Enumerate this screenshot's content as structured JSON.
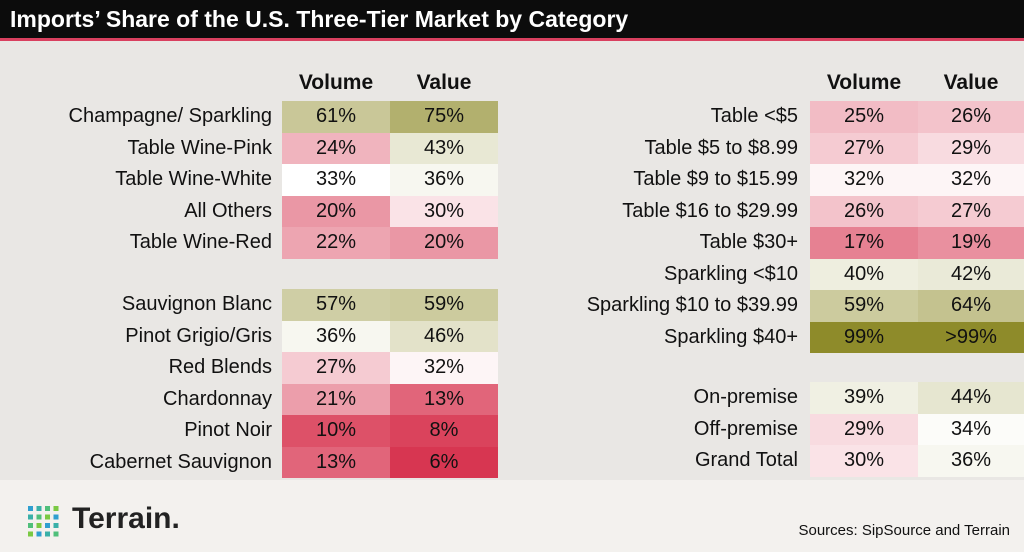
{
  "title": "Imports’ Share of the U.S. Three-Tier Market by Category",
  "colors": {
    "title_bg": "#0c0c0c",
    "title_rule": "#d9405f",
    "background": "#e9e7e4",
    "low_share": "#d62f4b",
    "mid_share": "#ffffff",
    "high_share": "#8d8a27"
  },
  "brand": {
    "logo_icon": "dot-grid-logo",
    "name": "Terrain."
  },
  "source_note": "Sources: SipSource and Terrain",
  "chart_data": [
    {
      "type": "table",
      "columns": [
        "Volume",
        "Value"
      ],
      "groups": [
        {
          "rows": [
            {
              "label": "Champagne/ Sparkling",
              "volume": "61%",
              "value": "75%"
            },
            {
              "label": "Table Wine-Pink",
              "volume": "24%",
              "value": "43%"
            },
            {
              "label": "Table Wine-White",
              "volume": "33%",
              "value": "36%"
            },
            {
              "label": "All Others",
              "volume": "20%",
              "value": "30%"
            },
            {
              "label": "Table Wine-Red",
              "volume": "22%",
              "value": "20%"
            }
          ]
        },
        {
          "rows": [
            {
              "label": "Sauvignon Blanc",
              "volume": "57%",
              "value": "59%"
            },
            {
              "label": "Pinot Grigio/Gris",
              "volume": "36%",
              "value": "46%"
            },
            {
              "label": "Red Blends",
              "volume": "27%",
              "value": "32%"
            },
            {
              "label": "Chardonnay",
              "volume": "21%",
              "value": "13%"
            },
            {
              "label": "Pinot Noir",
              "volume": "10%",
              "value": "8%"
            },
            {
              "label": "Cabernet Sauvignon",
              "volume": "13%",
              "value": "6%"
            }
          ]
        }
      ]
    },
    {
      "type": "table",
      "columns": [
        "Volume",
        "Value"
      ],
      "groups": [
        {
          "rows": [
            {
              "label": "Table <$5",
              "volume": "25%",
              "value": "26%"
            },
            {
              "label": "Table $5 to $8.99",
              "volume": "27%",
              "value": "29%"
            },
            {
              "label": "Table $9 to $15.99",
              "volume": "32%",
              "value": "32%"
            },
            {
              "label": "Table $16 to $29.99",
              "volume": "26%",
              "value": "27%"
            },
            {
              "label": "Table $30+",
              "volume": "17%",
              "value": "19%"
            },
            {
              "label": "Sparkling <$10",
              "volume": "40%",
              "value": "42%"
            },
            {
              "label": "Sparkling $10 to $39.99",
              "volume": "59%",
              "value": "64%"
            },
            {
              "label": "Sparkling $40+",
              "volume": "99%",
              "value": ">99%"
            }
          ]
        },
        {
          "rows": [
            {
              "label": "On-premise",
              "volume": "39%",
              "value": "44%"
            },
            {
              "label": "Off-premise",
              "volume": "29%",
              "value": "34%"
            },
            {
              "label": "Grand Total",
              "volume": "30%",
              "value": "36%"
            }
          ]
        }
      ]
    }
  ]
}
